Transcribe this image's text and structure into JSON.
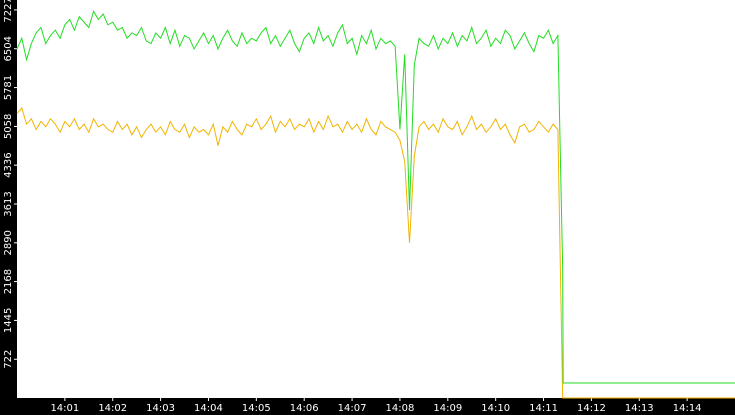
{
  "chart_data": {
    "type": "line",
    "x": [
      0,
      0.1,
      0.2,
      0.3,
      0.4,
      0.5,
      0.6,
      0.7,
      0.8,
      0.9,
      1,
      1.1,
      1.2,
      1.3,
      1.4,
      1.5,
      1.6,
      1.7,
      1.8,
      1.9,
      2,
      2.1,
      2.2,
      2.3,
      2.4,
      2.5,
      2.6,
      2.7,
      2.8,
      2.9,
      3,
      3.1,
      3.2,
      3.3,
      3.4,
      3.5,
      3.6,
      3.7,
      3.8,
      3.9,
      4,
      4.1,
      4.2,
      4.3,
      4.4,
      4.5,
      4.6,
      4.7,
      4.8,
      4.9,
      5,
      5.1,
      5.2,
      5.3,
      5.4,
      5.5,
      5.6,
      5.7,
      5.8,
      5.9,
      6,
      6.1,
      6.2,
      6.3,
      6.4,
      6.5,
      6.6,
      6.7,
      6.8,
      6.9,
      7,
      7.1,
      7.2,
      7.3,
      7.4,
      7.5,
      7.6,
      7.7,
      7.8,
      7.9,
      8,
      8.1,
      8.2,
      8.3,
      8.4,
      8.5,
      8.6,
      8.7,
      8.8,
      8.9,
      9,
      9.1,
      9.2,
      9.3,
      9.4,
      9.5,
      9.6,
      9.7,
      9.8,
      9.9,
      10,
      10.1,
      10.2,
      10.3,
      10.4,
      10.5,
      10.6,
      10.7,
      10.8,
      10.9,
      11,
      11.1,
      11.2,
      11.3,
      11.4,
      11.41,
      15
    ],
    "series": [
      {
        "color": "#f0b400",
        "values": [
          5300,
          5400,
          5100,
          5200,
          5000,
          5150,
          5050,
          5200,
          5100,
          4950,
          5150,
          5050,
          5200,
          5000,
          5100,
          4950,
          5200,
          5050,
          5100,
          5000,
          4950,
          5150,
          5000,
          5100,
          4900,
          5050,
          4850,
          5000,
          5100,
          4950,
          5050,
          4900,
          5150,
          5000,
          4950,
          5100,
          4850,
          5050,
          4950,
          5000,
          4900,
          5100,
          4700,
          5050,
          4950,
          5150,
          5000,
          4900,
          5100,
          5050,
          5200,
          5000,
          5100,
          5250,
          4950,
          5150,
          5050,
          5200,
          5000,
          5100,
          5050,
          5200,
          4950,
          5150,
          5000,
          5250,
          5050,
          5100,
          4950,
          5150,
          5000,
          5100,
          4950,
          5200,
          5000,
          4900,
          5150,
          5050,
          5000,
          4950,
          4800,
          4400,
          2890,
          4500,
          5050,
          5150,
          5000,
          5100,
          4950,
          5200,
          5050,
          5000,
          5150,
          4900,
          5050,
          5250,
          5000,
          5100,
          4950,
          5050,
          5200,
          5000,
          5100,
          4900,
          4750,
          5050,
          5100,
          4950,
          5000,
          5150,
          5050,
          4950,
          5100,
          5000,
          0,
          0,
          0
        ]
      },
      {
        "color": "#22dd22",
        "values": [
          6500,
          6700,
          6300,
          6600,
          6800,
          6900,
          6600,
          6750,
          6850,
          6700,
          6950,
          7050,
          6850,
          7100,
          7000,
          6900,
          7200,
          7050,
          7150,
          6950,
          7000,
          6850,
          6900,
          6700,
          6800,
          6750,
          6900,
          6650,
          6600,
          6800,
          6700,
          6900,
          6600,
          6850,
          6550,
          6750,
          6700,
          6500,
          6650,
          6800,
          6600,
          6750,
          6500,
          6700,
          6850,
          6650,
          6550,
          6800,
          6600,
          6700,
          6650,
          6800,
          6900,
          6600,
          6750,
          6550,
          6700,
          6850,
          6600,
          6450,
          6700,
          6800,
          6600,
          6900,
          6650,
          6750,
          6550,
          6800,
          6950,
          6600,
          6700,
          6400,
          6750,
          6600,
          6850,
          6500,
          6700,
          6600,
          6650,
          6550,
          5000,
          6400,
          3500,
          6200,
          6700,
          6600,
          6550,
          6750,
          6500,
          6700,
          6600,
          6800,
          6550,
          6750,
          6650,
          6900,
          6600,
          6700,
          6850,
          6550,
          6700,
          6600,
          6850,
          6750,
          6500,
          6650,
          6800,
          6600,
          6450,
          6750,
          6700,
          6850,
          6600,
          6750,
          2400,
          280,
          280
        ]
      }
    ],
    "xlim": [
      0,
      15
    ],
    "xticks": [
      {
        "value": 1,
        "label": "14:01"
      },
      {
        "value": 2,
        "label": "14:02"
      },
      {
        "value": 3,
        "label": "14:03"
      },
      {
        "value": 4,
        "label": "14:04"
      },
      {
        "value": 5,
        "label": "14:05"
      },
      {
        "value": 6,
        "label": "14:06"
      },
      {
        "value": 7,
        "label": "14:07"
      },
      {
        "value": 8,
        "label": "14:08"
      },
      {
        "value": 9,
        "label": "14:09"
      },
      {
        "value": 10,
        "label": "14:10"
      },
      {
        "value": 11,
        "label": "14:11"
      },
      {
        "value": 12,
        "label": "14:12"
      },
      {
        "value": 13,
        "label": "14:13"
      },
      {
        "value": 14,
        "label": "14:14"
      }
    ],
    "ylim": [
      0,
      7412
    ],
    "yticks": [
      722,
      1445,
      2168,
      2890,
      3613,
      4336,
      5058,
      5781,
      6504,
      7227
    ]
  }
}
